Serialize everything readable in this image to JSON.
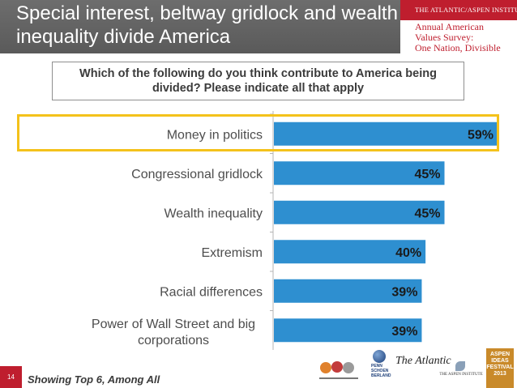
{
  "header": {
    "title_line1": "Special interest, beltway gridlock and wealth",
    "title_line2": "inequality divide America",
    "brand_org": "THE ATLANTIC/ASPEN INSTITUTE",
    "brand_survey_line1": "Annual American",
    "brand_survey_line2": "Values Survey:",
    "brand_survey_line3": "One Nation, Divisible"
  },
  "question": {
    "line1": "Which of the following do you think contribute to America being",
    "line2": "divided? Please indicate all that apply"
  },
  "chart_data": {
    "type": "bar",
    "orientation": "horizontal",
    "categories": [
      "Money in politics",
      "Congressional gridlock",
      "Wealth inequality",
      "Extremism",
      "Racial differences",
      "Power of Wall Street and big corporations"
    ],
    "values": [
      59,
      45,
      45,
      40,
      39,
      39
    ],
    "value_labels": [
      "59%",
      "45%",
      "45%",
      "40%",
      "39%",
      "39%"
    ],
    "unit": "%",
    "xlim": [
      0,
      59
    ],
    "bar_color": "#2e8fd0",
    "highlighted_category": "Money in politics",
    "highlight_color": "#f4c21b",
    "grid": false
  },
  "footer": {
    "slide_number": "14",
    "note": "Showing Top 6, Among All"
  },
  "logos": {
    "psb_line1": "PENN",
    "psb_line2": "SCHOEN",
    "psb_line3": "BERLAND",
    "atlantic": "The Atlantic",
    "aspen": "THE ASPEN INSTITUTE",
    "festival_line1": "ASPEN",
    "festival_line2": "IDEAS",
    "festival_line3": "FESTIVAL",
    "festival_line4": "2013"
  }
}
